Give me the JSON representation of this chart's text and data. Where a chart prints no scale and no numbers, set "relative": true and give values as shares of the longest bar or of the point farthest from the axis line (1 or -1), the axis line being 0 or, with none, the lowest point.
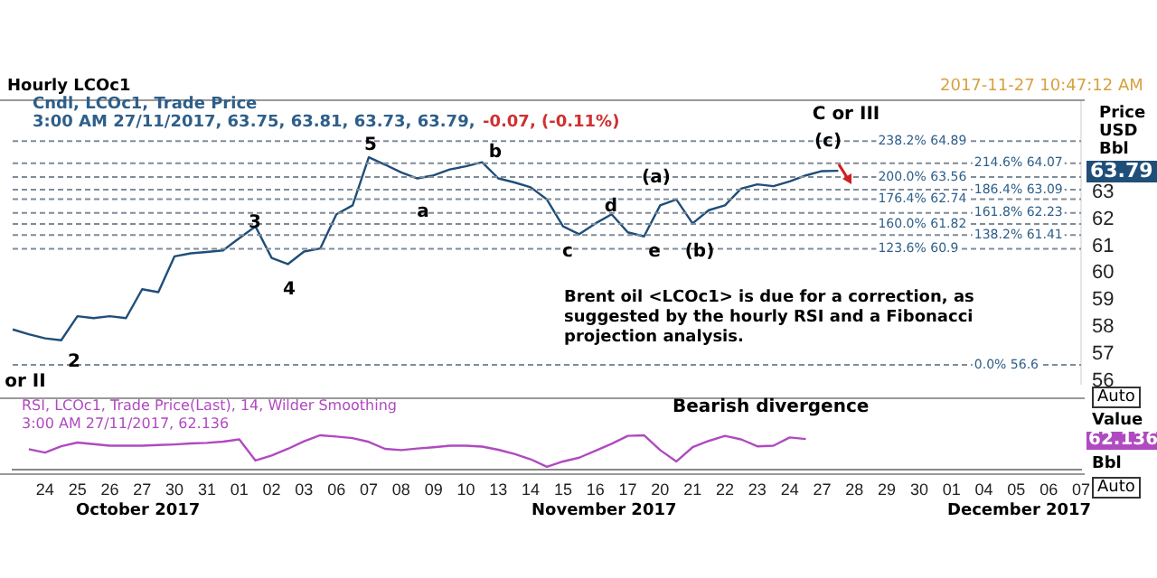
{
  "chart_data": [
    {
      "type": "line",
      "title": "Hourly LCOc1",
      "subtitle": "Cndl, LCOc1, Trade Price",
      "ylabel": "Price USD Bbl",
      "tick_labels": "y",
      "categories": [
        null,
        null,
        "24",
        null,
        "25",
        null,
        "26",
        null,
        "27",
        null,
        "30",
        null,
        "31",
        null,
        "01",
        null,
        "02",
        null,
        "03",
        null,
        "06",
        null,
        "07",
        null,
        "08",
        null,
        "09",
        null,
        "10",
        null,
        "13",
        null,
        "14",
        null,
        "15",
        null,
        "16",
        null,
        "17",
        null,
        "20",
        null,
        "21",
        null,
        "22",
        null,
        "23",
        null,
        "24",
        null,
        "27",
        null,
        "28",
        null,
        "29",
        null,
        "30",
        null,
        "01",
        null,
        "04",
        null,
        "05",
        null,
        "06",
        null,
        "07"
      ],
      "ylim": [
        55.9,
        66.4
      ],
      "yticks": [
        56,
        57,
        58,
        59,
        60,
        61,
        62,
        63
      ],
      "series": [
        {
          "color": "#1f4e79",
          "values": [
            57.91,
            57.73,
            57.58,
            57.51,
            58.4,
            58.33,
            58.4,
            58.33,
            59.4,
            59.29,
            60.62,
            60.73,
            60.78,
            60.84,
            61.29,
            61.73,
            60.56,
            60.33,
            60.8,
            60.91,
            62.18,
            62.51,
            64.29,
            64.02,
            63.73,
            63.51,
            63.62,
            63.84,
            63.96,
            64.11,
            63.51,
            63.36,
            63.18,
            62.73,
            61.73,
            61.44,
            61.84,
            62.18,
            61.51,
            61.36,
            62.51,
            62.73,
            61.84,
            62.33,
            62.51,
            63.13,
            63.29,
            63.22,
            63.4,
            63.62,
            63.78,
            63.79,
            null,
            null,
            null,
            null,
            null,
            null,
            null,
            null,
            null,
            null,
            null,
            null,
            null,
            null,
            null
          ]
        }
      ],
      "ref_lines": [
        {
          "axis": "y",
          "value": 64.89,
          "label": "238.2% 64.89"
        },
        {
          "axis": "y",
          "value": 64.07,
          "label": "214.6% 64.07"
        },
        {
          "axis": "y",
          "value": 63.56,
          "label": "200.0% 63.56"
        },
        {
          "axis": "y",
          "value": 63.09,
          "label": "186.4% 63.09"
        },
        {
          "axis": "y",
          "value": 62.74,
          "label": "176.4% 62.74"
        },
        {
          "axis": "y",
          "value": 62.23,
          "label": "161.8% 62.23"
        },
        {
          "axis": "y",
          "value": 61.82,
          "label": "160.0% 61.82"
        },
        {
          "axis": "y",
          "value": 61.41,
          "label": "138.2% 61.41"
        },
        {
          "axis": "y",
          "value": 60.9,
          "label": "123.6% 60.9"
        },
        {
          "axis": "y",
          "value": 56.6,
          "label": "0.0% 56.6"
        }
      ],
      "annotations": [
        "3:00 AM 27/11/2017, 63.75, 63.81, 63.73, 63.79,",
        "-0.07, (-0.11%)",
        "2017-11-27 10:47:12 AM",
        "Brent oil <LCOc1> is due for a correction, as suggested by the hourly RSI and a Fibonacci projection analysis.",
        "63.79",
        "Auto",
        "2",
        "3",
        "4",
        "5",
        "a",
        "b",
        "c",
        "d",
        "e",
        "(a)",
        "(b)",
        "(c)",
        "C or III",
        "or II"
      ]
    },
    {
      "type": "line",
      "title": "RSI, LCOc1, Trade Price(Last),  14, Wilder Smoothing",
      "ylabel": "Value",
      "relative": true,
      "tick_labels": "x",
      "categories": [
        null,
        null,
        "24",
        null,
        "25",
        null,
        "26",
        null,
        "27",
        null,
        "30",
        null,
        "31",
        null,
        "01",
        null,
        "02",
        null,
        "03",
        null,
        "06",
        null,
        "07",
        null,
        "08",
        null,
        "09",
        null,
        "10",
        null,
        "13",
        null,
        "14",
        null,
        "15",
        null,
        "16",
        null,
        "17",
        null,
        "20",
        null,
        "21",
        null,
        "22",
        null,
        "23",
        null,
        "24",
        null,
        "27",
        null,
        "28",
        null,
        "29",
        null,
        "30",
        null,
        "01",
        null,
        "04",
        null,
        "05",
        null,
        "06",
        null,
        "07"
      ],
      "series": [
        {
          "color": "#b04ac0",
          "values": [
            null,
            0.56,
            0.45,
            0.65,
            0.77,
            0.72,
            0.67,
            0.67,
            0.67,
            0.69,
            0.71,
            0.74,
            0.76,
            0.8,
            0.87,
            0.2,
            0.36,
            0.57,
            0.81,
            1,
            0.96,
            0.91,
            0.79,
            0.57,
            0.53,
            0.58,
            0.62,
            0.67,
            0.67,
            0.64,
            0.54,
            0.41,
            0.24,
            0,
            0.17,
            0.29,
            0.51,
            0.73,
            0.98,
            1,
            0.53,
            0.17,
            0.62,
            0.82,
            0.98,
            0.87,
            0.65,
            0.67,
            0.93,
            0.88,
            null,
            null,
            null,
            null,
            null,
            null,
            null,
            null,
            null,
            null,
            null,
            null,
            null,
            null,
            null,
            null,
            null
          ]
        }
      ],
      "annotations": [
        "3:00 AM 27/11/2017, 62.136",
        "Bearish divergence",
        "62.136",
        "Bbl",
        "Auto",
        "October 2017",
        "November 2017",
        "December 2017"
      ]
    }
  ]
}
